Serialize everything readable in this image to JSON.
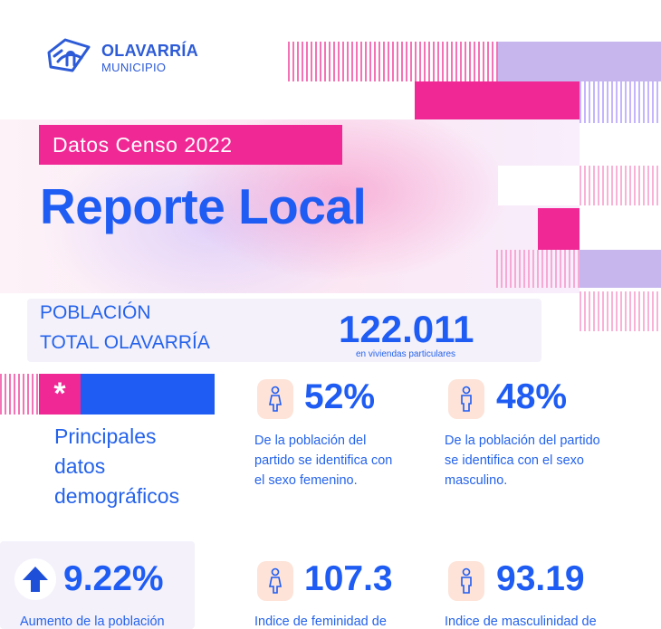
{
  "logo": {
    "name": "OLAVARRÍA",
    "subtitle": "MUNICIPIO"
  },
  "hero": {
    "badge": "Datos Censo 2022",
    "title": "Reporte Local"
  },
  "population": {
    "label_line1": "POBLACIÓN",
    "label_line2": "TOTAL OLAVARRÍA",
    "value": "122.011",
    "sub": "en viviendas particulares"
  },
  "section": {
    "asterisk": "*",
    "title_lines": [
      "Principales",
      "datos",
      "demográficos"
    ]
  },
  "stats": [
    {
      "value": "52%",
      "desc": [
        "De la población del",
        "partido se identifica con",
        "el sexo femenino."
      ],
      "icon": "female-person-icon"
    },
    {
      "value": "48%",
      "desc": [
        "De la población del partido",
        "se identifica con el sexo",
        "masculino."
      ],
      "icon": "male-person-icon"
    },
    {
      "value": "9.22%",
      "desc": [
        "Aumento de la población"
      ],
      "icon": "arrow-up-icon"
    },
    {
      "value": "107.3",
      "desc": [
        "Indice de feminidad de"
      ],
      "icon": "female-person-icon"
    },
    {
      "value": "93.19",
      "desc": [
        "Indice de masculinidad de"
      ],
      "icon": "male-person-icon"
    }
  ],
  "colors": {
    "blue": "#1e5cf3",
    "pink": "#f02895",
    "lavender": "#c4b5fd",
    "peach": "#fde3d8",
    "panel": "#f4f1fb"
  }
}
